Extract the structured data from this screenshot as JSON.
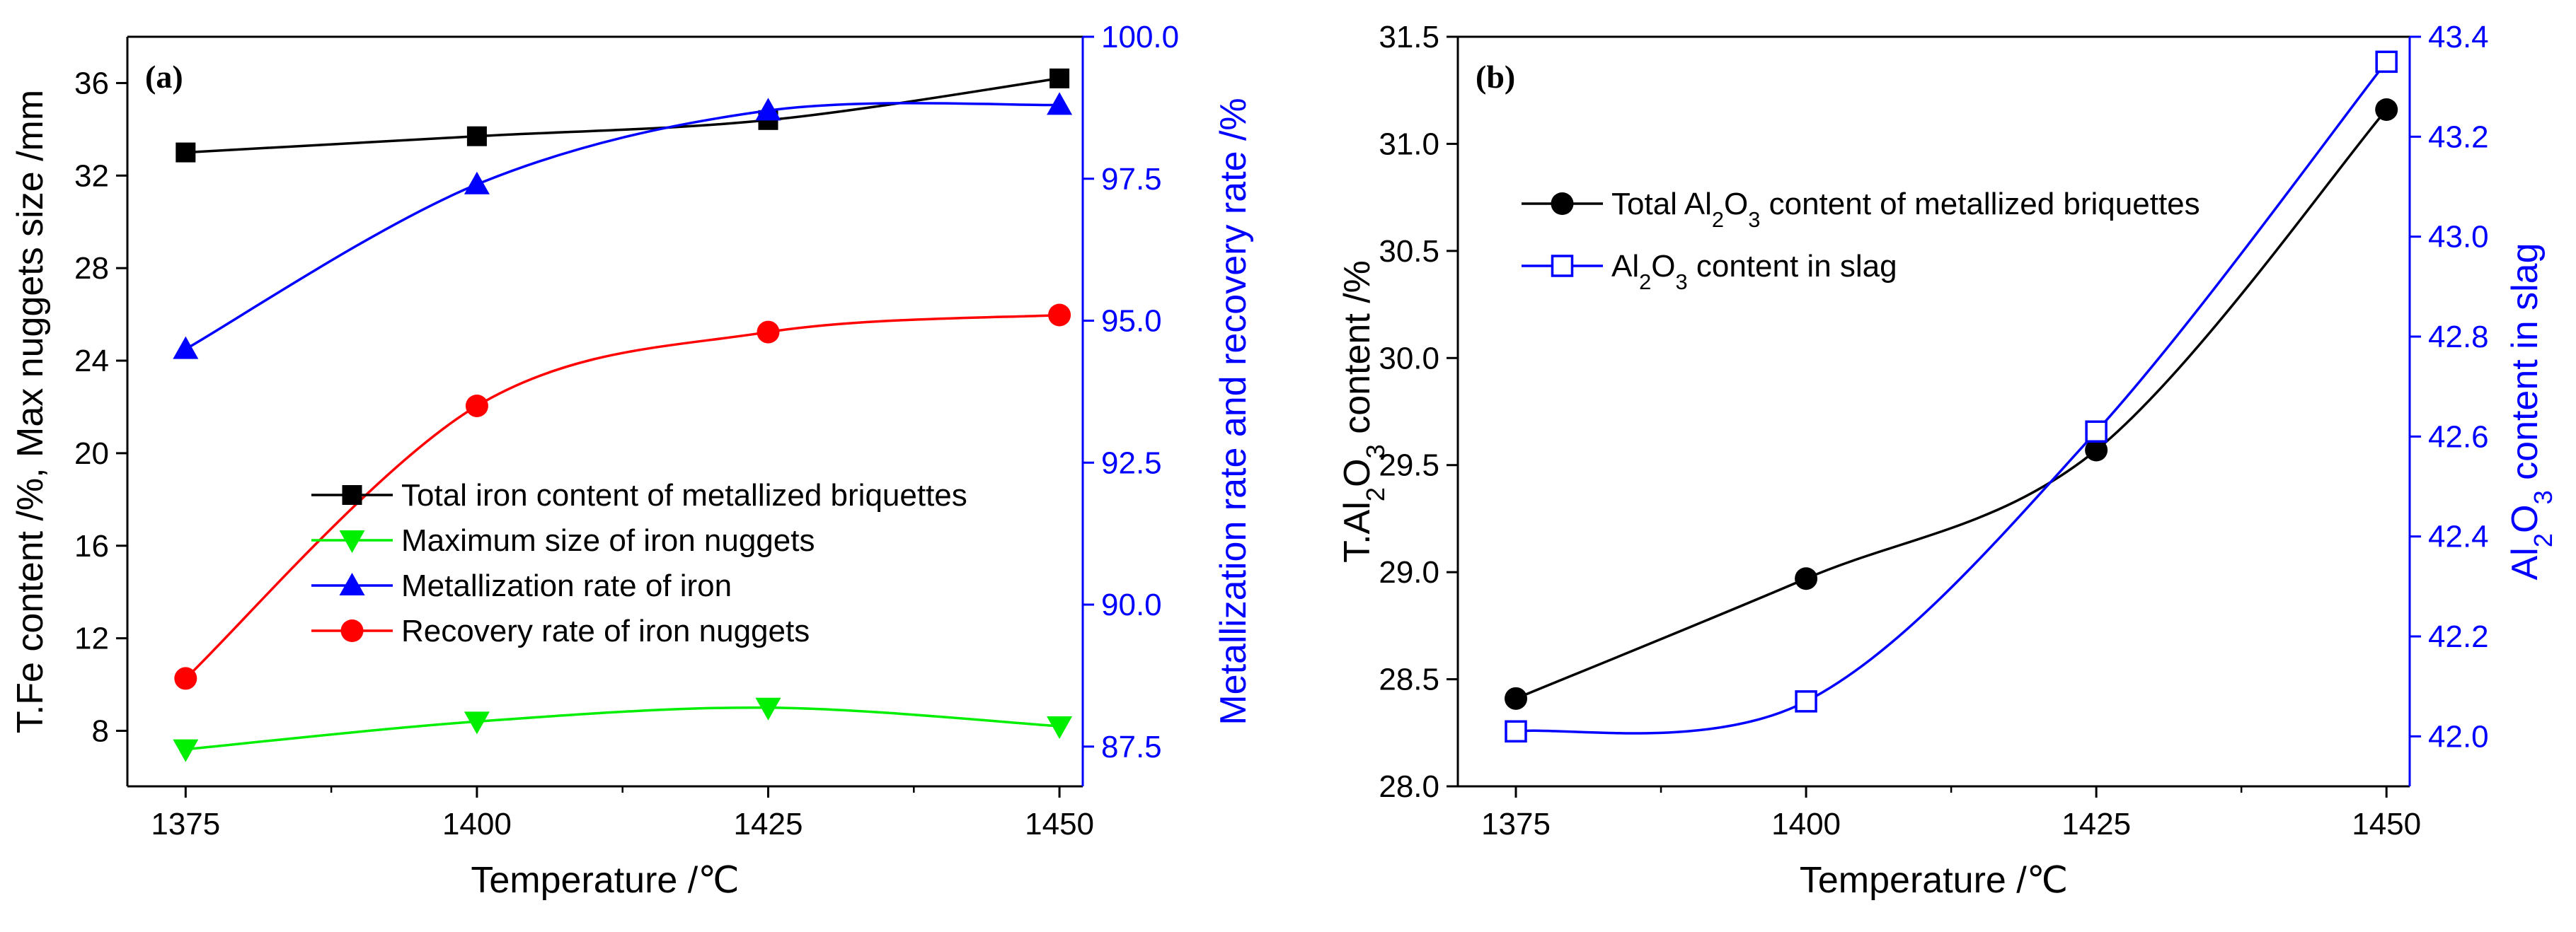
{
  "chart_data": [
    {
      "type": "line",
      "panel_label": "(a)",
      "xlabel": "Temperature /℃",
      "ylabel_left": "T.Fe content /%, Max nuggets size /mm",
      "ylabel_right": "Metallization rate and recovery rate /%",
      "x": [
        1375,
        1400,
        1425,
        1450
      ],
      "x_ticks": [
        "1375",
        "1400",
        "1425",
        "1450"
      ],
      "xlim": [
        1370,
        1452
      ],
      "ylim_left": [
        5.6,
        38
      ],
      "ylim_right": [
        86.8,
        100.0
      ],
      "yticks_left": [
        "8",
        "12",
        "16",
        "20",
        "24",
        "28",
        "32",
        "36"
      ],
      "yticks_right": [
        "87.5",
        "90.0",
        "92.5",
        "95.0",
        "97.5",
        "100.0"
      ],
      "series": [
        {
          "name": "Total iron content of metallized briquettes",
          "axis": "left",
          "color": "#000000",
          "marker": "square",
          "values": [
            33.0,
            33.7,
            34.4,
            36.2
          ]
        },
        {
          "name": "Maximum size of iron nuggets",
          "axis": "left",
          "color": "#00ee00",
          "marker": "triangle-down",
          "values": [
            7.2,
            8.4,
            9.0,
            8.2
          ]
        },
        {
          "name": "Metallization rate of iron",
          "axis": "right",
          "color": "#0000ff",
          "marker": "triangle-up",
          "values": [
            94.5,
            97.4,
            98.7,
            98.8
          ]
        },
        {
          "name": "Recovery rate of iron nuggets",
          "axis": "right",
          "color": "#ff0000",
          "marker": "circle",
          "values": [
            88.7,
            93.5,
            94.8,
            95.1
          ]
        }
      ]
    },
    {
      "type": "line",
      "panel_label": "(b)",
      "xlabel": "Temperature /℃",
      "ylabel_left": "T.Al2O3 content /%",
      "ylabel_right": "Al2O3 content in slag",
      "x": [
        1375,
        1400,
        1425,
        1450
      ],
      "x_ticks": [
        "1375",
        "1400",
        "1425",
        "1450"
      ],
      "xlim": [
        1370,
        1452
      ],
      "ylim_left": [
        28.0,
        31.5
      ],
      "ylim_right": [
        41.9,
        43.4
      ],
      "yticks_left": [
        "28.0",
        "28.5",
        "29.0",
        "29.5",
        "30.0",
        "30.5",
        "31.0",
        "31.5"
      ],
      "yticks_right": [
        "42.0",
        "42.2",
        "42.4",
        "42.6",
        "42.8",
        "43.0",
        "43.2",
        "43.4"
      ],
      "series": [
        {
          "name": "Total Al2O3 content of metallized briquettes",
          "axis": "left",
          "color": "#000000",
          "marker": "circle",
          "values": [
            28.41,
            28.97,
            29.57,
            31.16
          ]
        },
        {
          "name": "Al2O3 content in slag",
          "axis": "right",
          "color": "#0000ff",
          "marker": "square-open",
          "values": [
            42.01,
            42.07,
            42.61,
            43.35
          ]
        }
      ]
    }
  ]
}
